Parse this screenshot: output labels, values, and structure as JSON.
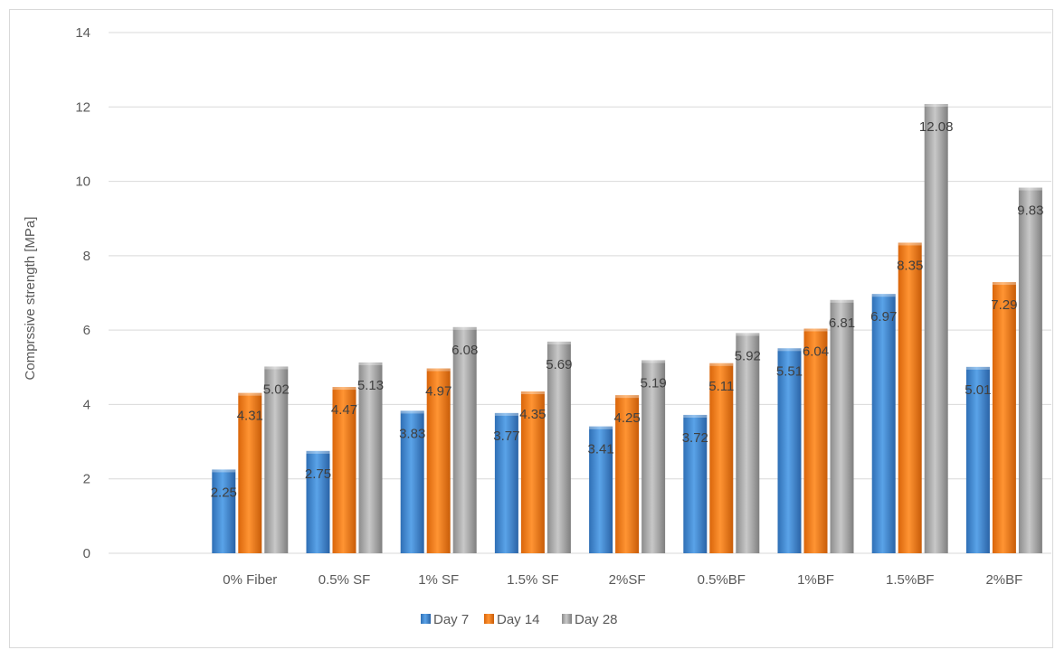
{
  "chart_data": {
    "type": "bar",
    "title": "",
    "xlabel": "",
    "ylabel": "Comprssive strength [MPa]",
    "ylim": [
      0,
      14
    ],
    "yticks": [
      0,
      2,
      4,
      6,
      8,
      10,
      12,
      14
    ],
    "grid": true,
    "legend_position": "bottom",
    "categories": [
      "",
      "0% Fiber",
      "0.5% SF",
      "1% SF",
      "1.5% SF",
      "2%SF",
      "0.5%BF",
      "1%BF",
      "1.5%BF",
      "2%BF"
    ],
    "series": [
      {
        "name": "Day 7",
        "color": "#4a90d9",
        "values": [
          null,
          2.25,
          2.75,
          3.83,
          3.77,
          3.41,
          3.72,
          5.51,
          6.97,
          5.01
        ]
      },
      {
        "name": "Day 14",
        "color": "#f07f1c",
        "values": [
          null,
          4.31,
          4.47,
          4.97,
          4.35,
          4.25,
          5.11,
          6.04,
          8.35,
          7.29
        ]
      },
      {
        "name": "Day 28",
        "color": "#a6a6a6",
        "values": [
          null,
          5.02,
          5.13,
          6.08,
          5.69,
          5.19,
          5.92,
          6.81,
          12.08,
          9.83
        ]
      }
    ],
    "data_label_texts": [
      [
        null,
        "2.25",
        "2.75",
        "3.83",
        "3.77",
        "3.41",
        "3.72",
        "5.51",
        "6.97",
        "5.01"
      ],
      [
        null,
        "4.31",
        "4.47",
        "4.97",
        "4.35",
        "4.25",
        "5.11",
        "6.04",
        "8.35",
        "7.29"
      ],
      [
        null,
        "5.02",
        "5.13",
        "6.08",
        "5.69",
        "5.19",
        "5.92",
        "6.81",
        "12.08",
        "9.83"
      ]
    ]
  }
}
